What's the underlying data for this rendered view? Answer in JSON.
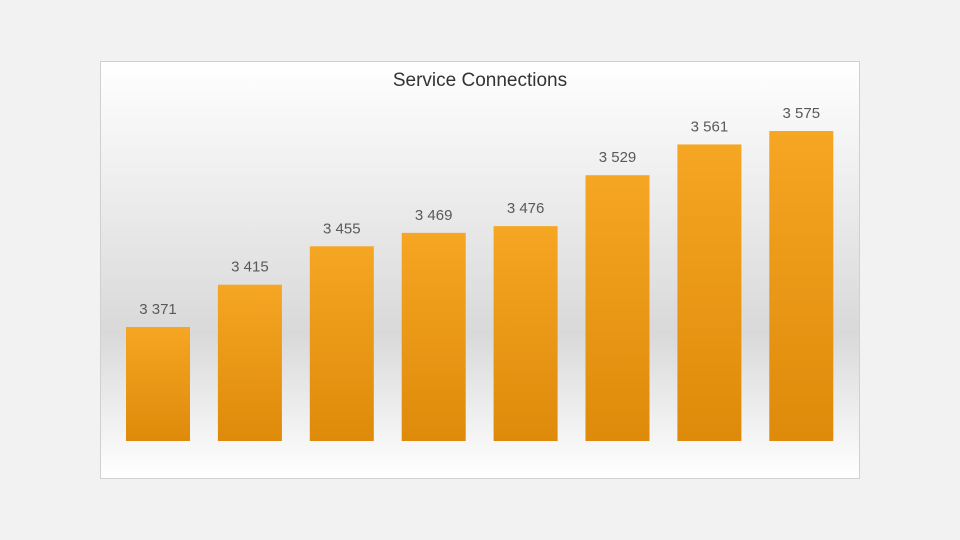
{
  "chart_data": {
    "type": "bar",
    "title": "Service Connections",
    "values": [
      3371,
      3415,
      3455,
      3469,
      3476,
      3529,
      3561,
      3575
    ],
    "value_labels": [
      "3 371",
      "3 415",
      "3 455",
      "3 469",
      "3 476",
      "3 529",
      "3 561",
      "3 575"
    ],
    "color": "#f5a623"
  }
}
